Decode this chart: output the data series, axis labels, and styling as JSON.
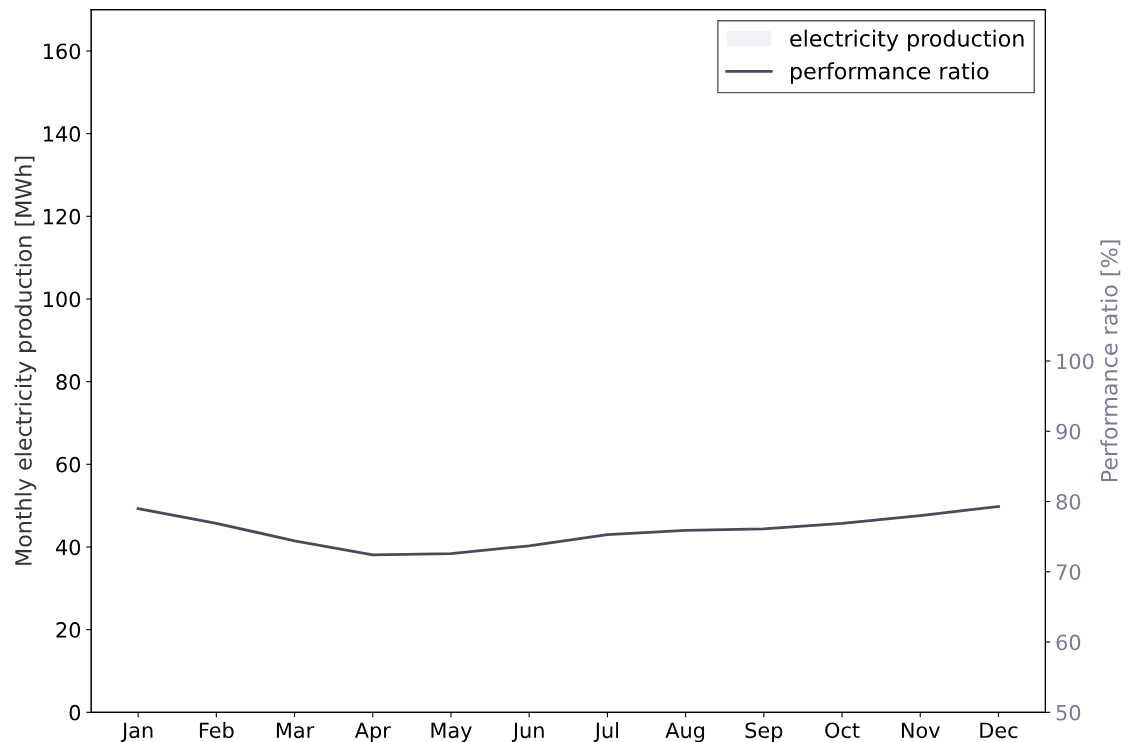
{
  "chart_data": {
    "type": "bar",
    "categories": [
      "Jan",
      "Feb",
      "Mar",
      "Apr",
      "May",
      "Jun",
      "Jul",
      "Aug",
      "Sep",
      "Oct",
      "Nov",
      "Dec"
    ],
    "series": [
      {
        "name": "electricity production",
        "color": "#f2f2f6",
        "values": [
          null,
          null,
          null,
          null,
          null,
          null,
          null,
          null,
          null,
          null,
          null,
          null
        ]
      },
      {
        "name": "performance ratio",
        "type": "line",
        "axis": "y2",
        "color": "#4a4a5c",
        "values": [
          79.0,
          76.9,
          74.4,
          72.4,
          72.6,
          73.7,
          75.3,
          75.9,
          76.1,
          76.9,
          78.0,
          79.3
        ]
      }
    ],
    "ylabel": "Monthly electricity production [MWh]",
    "y2label": "Performance ratio [%]",
    "ylim": [
      0,
      170
    ],
    "yticks": [
      0,
      20,
      40,
      60,
      80,
      100,
      120,
      140,
      160
    ],
    "y2lim": [
      50,
      150
    ],
    "y2ticks": [
      50,
      60,
      70,
      80,
      90,
      100
    ],
    "legend": "top right",
    "grid": false
  }
}
